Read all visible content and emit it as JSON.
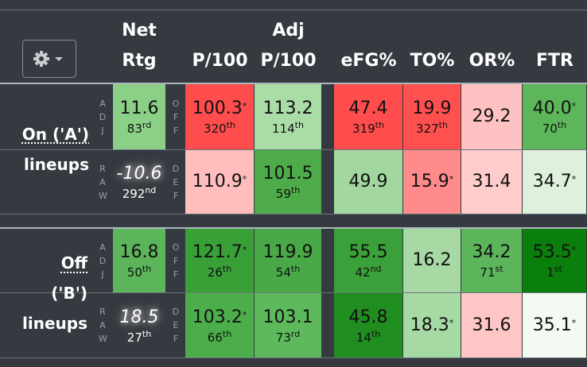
{
  "header": {
    "columns": [
      [
        "Net",
        "Rtg"
      ],
      [
        "P/100"
      ],
      [
        "Adj",
        "P/100"
      ],
      [
        "eFG%"
      ],
      [
        "TO%"
      ],
      [
        "OR%"
      ],
      [
        "FTR"
      ]
    ]
  },
  "groups": [
    {
      "label": [
        "On ('A')",
        "lineups"
      ],
      "rows": [
        {
          "side": "ADJ",
          "net": {
            "value": "11.6",
            "rank": "83",
            "ord": "rd",
            "bg": "#8ccf87"
          },
          "side2": "OFF",
          "cells": [
            {
              "value": "100.3",
              "star": "*",
              "rank": "320",
              "ord": "th",
              "bg": "#ff4d4d"
            },
            {
              "value": "113.2",
              "rank": "114",
              "ord": "th",
              "bg": "#a9dca6"
            },
            {
              "value": "47.4",
              "rank": "319",
              "ord": "th",
              "bg": "#ff4c4c"
            },
            {
              "value": "19.9",
              "rank": "327",
              "ord": "th",
              "bg": "#ff5050"
            },
            {
              "value": "29.2",
              "bg": "#ffc2c2"
            },
            {
              "value": "40.0",
              "star": "*",
              "rank": "70",
              "ord": "th",
              "bg": "#5db65a"
            }
          ]
        },
        {
          "side": "RAW",
          "net": {
            "value": "-10.6",
            "rank": "292",
            "ord": "nd",
            "bg": "#343a40",
            "fg": "#ffffff"
          },
          "side2": "DEF",
          "cells": [
            {
              "value": "110.9",
              "star": "*",
              "bg": "#ffbdbd"
            },
            {
              "value": "101.5",
              "rank": "59",
              "ord": "th",
              "bg": "#4dab4a"
            },
            {
              "value": "49.9",
              "bg": "#a2d89f"
            },
            {
              "value": "15.9",
              "star": "*",
              "bg": "#ff8b8b"
            },
            {
              "value": "31.4",
              "bg": "#ffcccc"
            },
            {
              "value": "34.7",
              "star": "*",
              "bg": "#dff1dd"
            }
          ]
        }
      ]
    },
    {
      "label": [
        "Off",
        "('B')",
        "lineups"
      ],
      "rows": [
        {
          "side": "ADJ",
          "net": {
            "value": "16.8",
            "rank": "50",
            "ord": "th",
            "bg": "#5cb55a"
          },
          "side2": "OFF",
          "cells": [
            {
              "value": "121.7",
              "star": "*",
              "rank": "26",
              "ord": "th",
              "bg": "#39a038"
            },
            {
              "value": "119.9",
              "rank": "54",
              "ord": "th",
              "bg": "#49a847"
            },
            {
              "value": "55.5",
              "rank": "42",
              "ord": "nd",
              "bg": "#3aa039"
            },
            {
              "value": "16.2",
              "bg": "#a6d9a3"
            },
            {
              "value": "34.2",
              "rank": "71",
              "ord": "st",
              "bg": "#5cb55a"
            },
            {
              "value": "53.5",
              "star": "*",
              "rank": "1",
              "ord": "st",
              "bg": "#0b7f0b"
            }
          ]
        },
        {
          "side": "RAW",
          "net": {
            "value": "18.5",
            "rank": "27",
            "ord": "th",
            "bg": "#343a40",
            "fg": "#ffffff"
          },
          "side2": "DEF",
          "cells": [
            {
              "value": "103.2",
              "star": "*",
              "rank": "66",
              "ord": "th",
              "bg": "#4cae4a"
            },
            {
              "value": "103.1",
              "rank": "73",
              "ord": "rd",
              "bg": "#5db95b"
            },
            {
              "value": "45.8",
              "rank": "14",
              "ord": "th",
              "bg": "#1f8d1f"
            },
            {
              "value": "18.3",
              "star": "*",
              "bg": "#a6d9a3"
            },
            {
              "value": "31.6",
              "bg": "#ffc6c6"
            },
            {
              "value": "35.1",
              "star": "*",
              "bg": "#f3faf2"
            }
          ]
        }
      ]
    }
  ]
}
